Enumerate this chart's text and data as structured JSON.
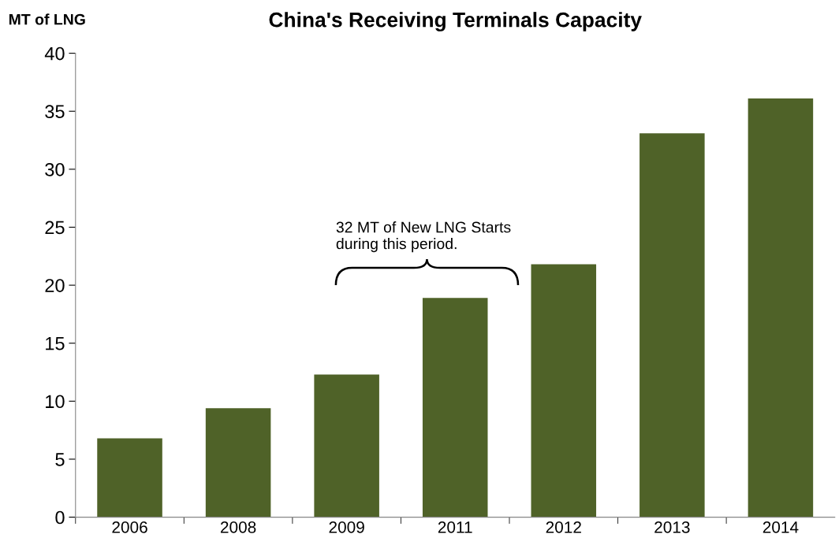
{
  "chart_data": {
    "type": "bar",
    "title": "China's Receiving Terminals Capacity",
    "ylabel": "MT of LNG",
    "categories": [
      "2006",
      "2008",
      "2009",
      "2011",
      "2012",
      "2013",
      "2014"
    ],
    "values": [
      6.8,
      9.4,
      12.3,
      18.9,
      21.8,
      33.1,
      36.1
    ],
    "color": "#4f6228",
    "ylim": [
      0,
      40
    ],
    "yticks": [
      0,
      5,
      10,
      15,
      20,
      25,
      30,
      35,
      40
    ],
    "grid": false,
    "legend": false,
    "annotations": [
      "32 MT of New LNG Starts during this period."
    ]
  }
}
